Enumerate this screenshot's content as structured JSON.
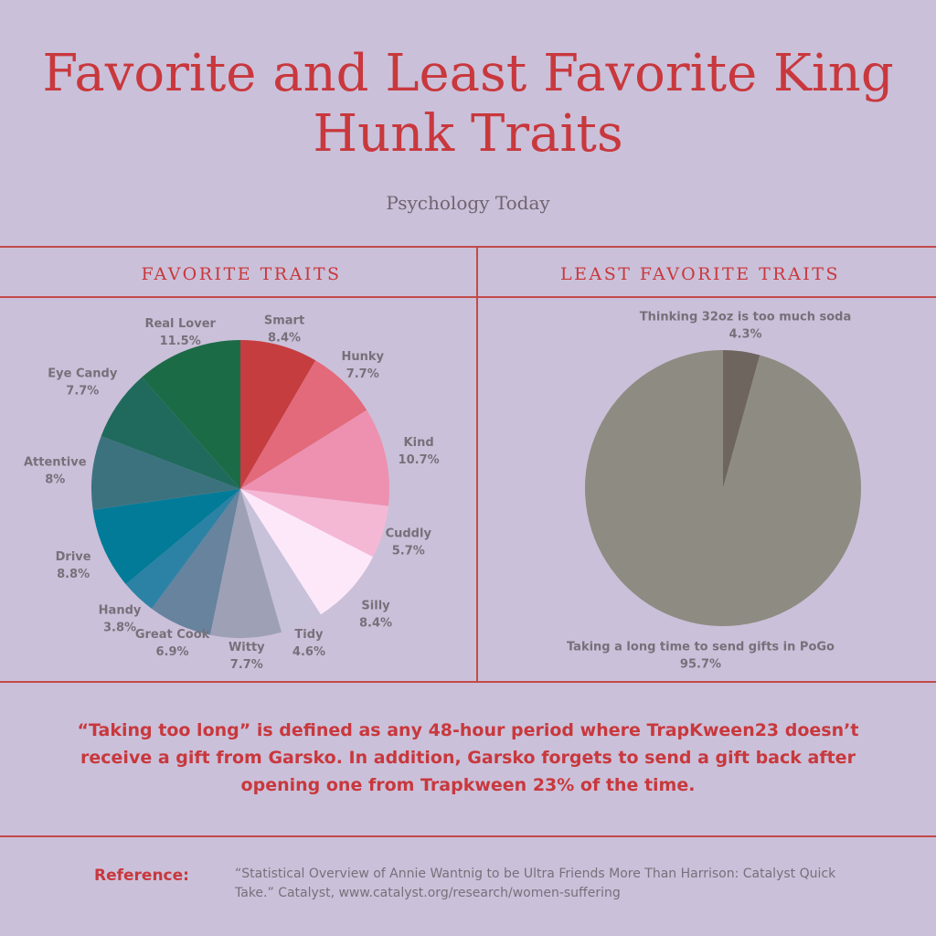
{
  "header": {
    "title": "Favorite and Least Favorite King Hunk Traits",
    "subtitle": "Psychology Today"
  },
  "chart_data": [
    {
      "type": "pie",
      "title": "FAVORITE TRAITS",
      "slices": [
        {
          "label": "Smart",
          "value": 8.4,
          "display": "8.4%",
          "color": "#c63d40"
        },
        {
          "label": "Hunky",
          "value": 7.7,
          "display": "7.7%",
          "color": "#e26a7b"
        },
        {
          "label": "Kind",
          "value": 10.7,
          "display": "10.7%",
          "color": "#ee91b0"
        },
        {
          "label": "Cuddly",
          "value": 5.7,
          "display": "5.7%",
          "color": "#f4b8d5"
        },
        {
          "label": "Silly",
          "value": 8.4,
          "display": "8.4%",
          "color": "#fde8fa"
        },
        {
          "label": "Tidy",
          "value": 4.6,
          "display": "4.6%",
          "color": "#c7c2d9"
        },
        {
          "label": "Witty",
          "value": 7.7,
          "display": "7.7%",
          "color": "#9ea0b6"
        },
        {
          "label": "Great Cook",
          "value": 6.9,
          "display": "6.9%",
          "color": "#67839e"
        },
        {
          "label": "Handy",
          "value": 3.8,
          "display": "3.8%",
          "color": "#2c82a4"
        },
        {
          "label": "Drive",
          "value": 8.8,
          "display": "8.8%",
          "color": "#027b98"
        },
        {
          "label": "Attentive",
          "value": 8,
          "display": "8%",
          "color": "#3c727e"
        },
        {
          "label": "Eye Candy",
          "value": 7.7,
          "display": "7.7%",
          "color": "#1f6a5c"
        },
        {
          "label": "Real Lover",
          "value": 11.5,
          "display": "11.5%",
          "color": "#1c6b47"
        }
      ]
    },
    {
      "type": "pie",
      "title": "LEAST FAVORITE TRAITS",
      "slices": [
        {
          "label": "Thinking 32oz is too much soda",
          "value": 4.3,
          "display": "4.3%",
          "color": "#6e655f"
        },
        {
          "label": "Taking a long time to send gifts in PoGo",
          "value": 95.7,
          "display": "95.7%",
          "color": "#8e8b82"
        }
      ]
    }
  ],
  "note": "“Taking too long” is defined as any 48-hour period where TrapKween23 doesn’t receive a gift from Garsko. In addition, Garsko forgets to send a gift back after opening one from Trapkween 23% of the time.",
  "reference": {
    "label": "Reference:",
    "text": "“Statistical Overview of Annie Wantnig to be Ultra Friends More Than Harrison: Catalyst Quick Take.” Catalyst, www.catalyst.org/research/women-suffering"
  }
}
